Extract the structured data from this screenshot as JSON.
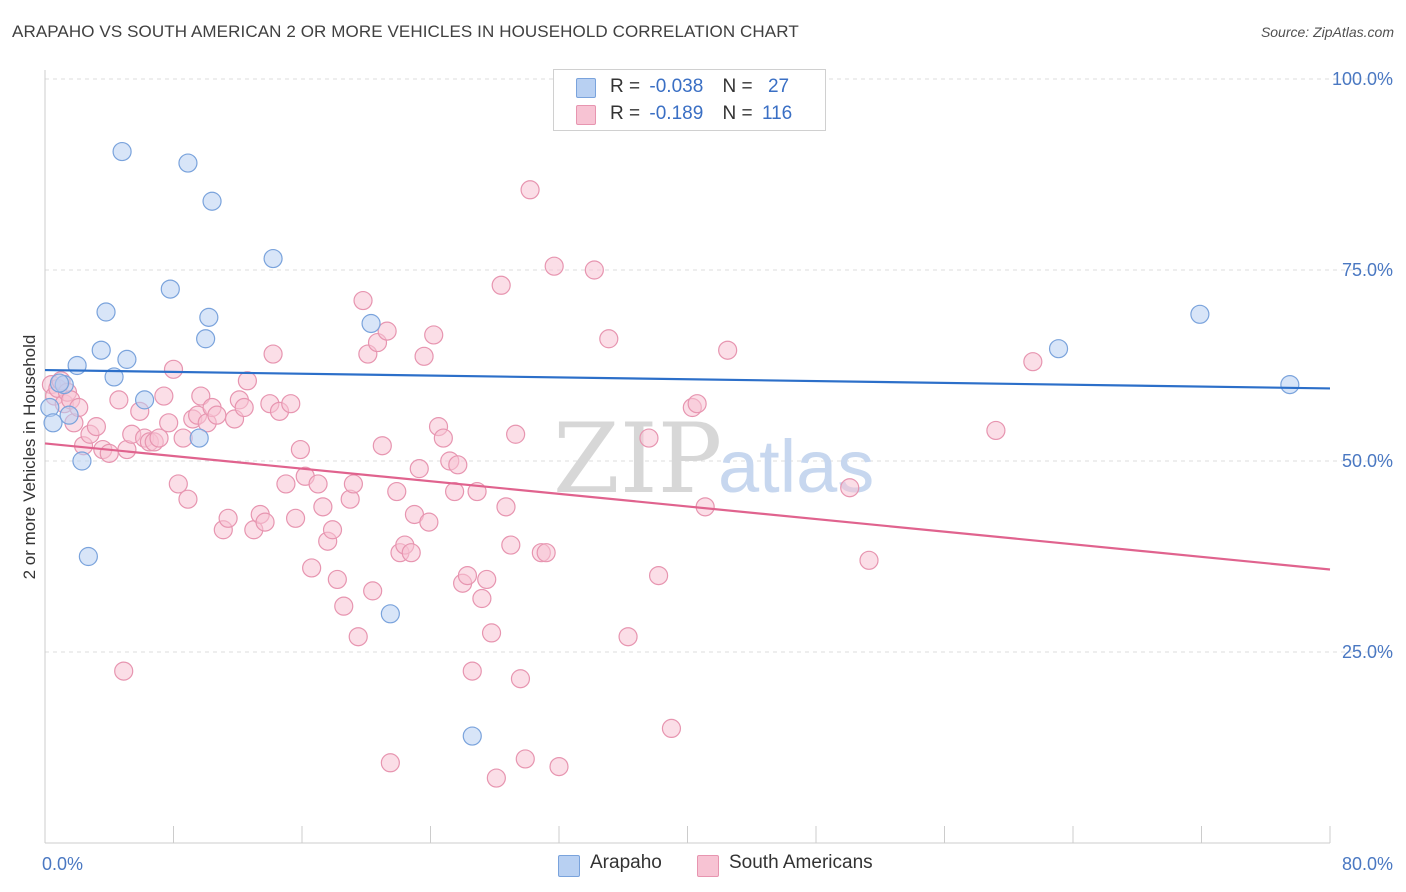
{
  "title": "ARAPAHO VS SOUTH AMERICAN 2 OR MORE VEHICLES IN HOUSEHOLD CORRELATION CHART",
  "source": "Source: ZipAtlas.com",
  "watermark": {
    "zip": "ZIP",
    "atlas": "atlas"
  },
  "colors": {
    "arapaho_fill": "#b8d0f2",
    "arapaho_stroke": "#7aa3dc",
    "arapaho_line": "#2c6fc9",
    "south_fill": "#f7c3d3",
    "south_stroke": "#e795b0",
    "south_line": "#e0638e",
    "grid": "#dddddd",
    "tick_text": "#4a78c2"
  },
  "legend": {
    "rows": [
      {
        "r_label": "R =",
        "r_value": "-0.038",
        "n_label": "N =",
        "n_value": "27"
      },
      {
        "r_label": "R =",
        "r_value": "-0.189",
        "n_label": "N =",
        "n_value": "116"
      }
    ]
  },
  "bottom_legend": {
    "arapaho": "Arapaho",
    "south": "South Americans"
  },
  "chart_data": {
    "type": "scatter",
    "xlabel": "",
    "ylabel": "2 or more Vehicles in Household",
    "xlim": [
      0,
      80
    ],
    "ylim": [
      0,
      105
    ],
    "x_tick_labels": [
      "0.0%",
      "80.0%"
    ],
    "y_ticks": [
      25,
      50,
      75,
      100
    ],
    "y_tick_labels": [
      "25.0%",
      "50.0%",
      "75.0%",
      "100.0%"
    ],
    "grid": true,
    "legend_position": "top-center",
    "series": [
      {
        "name": "Arapaho",
        "trend": {
          "x": [
            0,
            80
          ],
          "y": [
            61.9,
            59.5
          ]
        },
        "points": [
          {
            "x": 0.3,
            "y": 57.0
          },
          {
            "x": 0.5,
            "y": 55.0
          },
          {
            "x": 1.2,
            "y": 60.0
          },
          {
            "x": 1.5,
            "y": 56.0
          },
          {
            "x": 2.0,
            "y": 62.5
          },
          {
            "x": 2.3,
            "y": 50.0
          },
          {
            "x": 2.7,
            "y": 37.5
          },
          {
            "x": 3.5,
            "y": 64.5
          },
          {
            "x": 3.8,
            "y": 69.5
          },
          {
            "x": 4.3,
            "y": 61.0
          },
          {
            "x": 4.8,
            "y": 90.5
          },
          {
            "x": 5.1,
            "y": 63.3
          },
          {
            "x": 6.2,
            "y": 58.0
          },
          {
            "x": 7.8,
            "y": 72.5
          },
          {
            "x": 8.9,
            "y": 89.0
          },
          {
            "x": 9.6,
            "y": 53.0
          },
          {
            "x": 10.0,
            "y": 66.0
          },
          {
            "x": 10.2,
            "y": 68.8
          },
          {
            "x": 10.4,
            "y": 84.0
          },
          {
            "x": 14.2,
            "y": 76.5
          },
          {
            "x": 20.3,
            "y": 68.0
          },
          {
            "x": 21.5,
            "y": 30.0
          },
          {
            "x": 26.6,
            "y": 14.0
          },
          {
            "x": 63.1,
            "y": 64.7
          },
          {
            "x": 71.9,
            "y": 69.2
          },
          {
            "x": 77.5,
            "y": 60.0
          },
          {
            "x": 0.9,
            "y": 60.2
          }
        ]
      },
      {
        "name": "South Americans",
        "trend": {
          "x": [
            0,
            80
          ],
          "y": [
            52.3,
            35.8
          ]
        },
        "points": [
          {
            "x": 0.4,
            "y": 60.0
          },
          {
            "x": 0.6,
            "y": 58.5
          },
          {
            "x": 0.8,
            "y": 59.5
          },
          {
            "x": 1.0,
            "y": 60.5
          },
          {
            "x": 1.2,
            "y": 57.5
          },
          {
            "x": 1.4,
            "y": 59.0
          },
          {
            "x": 1.6,
            "y": 58.0
          },
          {
            "x": 1.8,
            "y": 55.0
          },
          {
            "x": 2.1,
            "y": 57.0
          },
          {
            "x": 2.4,
            "y": 52.0
          },
          {
            "x": 2.8,
            "y": 53.5
          },
          {
            "x": 3.2,
            "y": 54.5
          },
          {
            "x": 3.6,
            "y": 51.5
          },
          {
            "x": 4.0,
            "y": 51.0
          },
          {
            "x": 4.6,
            "y": 58.0
          },
          {
            "x": 4.9,
            "y": 22.5
          },
          {
            "x": 5.1,
            "y": 51.5
          },
          {
            "x": 5.4,
            "y": 53.5
          },
          {
            "x": 5.9,
            "y": 56.5
          },
          {
            "x": 6.2,
            "y": 53.0
          },
          {
            "x": 6.5,
            "y": 52.5
          },
          {
            "x": 6.8,
            "y": 52.5
          },
          {
            "x": 7.1,
            "y": 53.0
          },
          {
            "x": 7.4,
            "y": 58.5
          },
          {
            "x": 7.7,
            "y": 55.0
          },
          {
            "x": 8.0,
            "y": 62.0
          },
          {
            "x": 8.3,
            "y": 47.0
          },
          {
            "x": 8.6,
            "y": 53.0
          },
          {
            "x": 8.9,
            "y": 45.0
          },
          {
            "x": 9.2,
            "y": 55.5
          },
          {
            "x": 9.5,
            "y": 56.0
          },
          {
            "x": 9.7,
            "y": 58.5
          },
          {
            "x": 10.1,
            "y": 55.0
          },
          {
            "x": 10.4,
            "y": 57.0
          },
          {
            "x": 10.7,
            "y": 56.0
          },
          {
            "x": 11.1,
            "y": 41.0
          },
          {
            "x": 11.4,
            "y": 42.5
          },
          {
            "x": 11.8,
            "y": 55.5
          },
          {
            "x": 12.1,
            "y": 58.0
          },
          {
            "x": 12.4,
            "y": 57.0
          },
          {
            "x": 12.6,
            "y": 60.5
          },
          {
            "x": 13.0,
            "y": 41.0
          },
          {
            "x": 13.4,
            "y": 43.0
          },
          {
            "x": 13.7,
            "y": 42.0
          },
          {
            "x": 14.0,
            "y": 57.5
          },
          {
            "x": 14.2,
            "y": 64.0
          },
          {
            "x": 14.6,
            "y": 56.5
          },
          {
            "x": 15.0,
            "y": 47.0
          },
          {
            "x": 15.3,
            "y": 57.5
          },
          {
            "x": 15.6,
            "y": 42.5
          },
          {
            "x": 15.9,
            "y": 51.5
          },
          {
            "x": 16.2,
            "y": 48.0
          },
          {
            "x": 16.6,
            "y": 36.0
          },
          {
            "x": 17.0,
            "y": 47.0
          },
          {
            "x": 17.3,
            "y": 44.0
          },
          {
            "x": 17.6,
            "y": 39.5
          },
          {
            "x": 17.9,
            "y": 41.0
          },
          {
            "x": 18.2,
            "y": 34.5
          },
          {
            "x": 18.6,
            "y": 31.0
          },
          {
            "x": 19.0,
            "y": 45.0
          },
          {
            "x": 19.2,
            "y": 47.0
          },
          {
            "x": 19.5,
            "y": 27.0
          },
          {
            "x": 19.8,
            "y": 71.0
          },
          {
            "x": 20.1,
            "y": 64.0
          },
          {
            "x": 20.4,
            "y": 33.0
          },
          {
            "x": 20.7,
            "y": 65.5
          },
          {
            "x": 21.0,
            "y": 52.0
          },
          {
            "x": 21.3,
            "y": 67.0
          },
          {
            "x": 21.5,
            "y": 10.5
          },
          {
            "x": 21.9,
            "y": 46.0
          },
          {
            "x": 22.1,
            "y": 38.0
          },
          {
            "x": 22.4,
            "y": 39.0
          },
          {
            "x": 22.8,
            "y": 38.0
          },
          {
            "x": 23.0,
            "y": 43.0
          },
          {
            "x": 23.3,
            "y": 49.0
          },
          {
            "x": 23.6,
            "y": 63.7
          },
          {
            "x": 23.9,
            "y": 42.0
          },
          {
            "x": 24.2,
            "y": 66.5
          },
          {
            "x": 24.5,
            "y": 54.5
          },
          {
            "x": 24.8,
            "y": 53.0
          },
          {
            "x": 25.2,
            "y": 50.0
          },
          {
            "x": 25.5,
            "y": 46.0
          },
          {
            "x": 25.7,
            "y": 49.5
          },
          {
            "x": 26.0,
            "y": 34.0
          },
          {
            "x": 26.3,
            "y": 35.0
          },
          {
            "x": 26.6,
            "y": 22.5
          },
          {
            "x": 26.9,
            "y": 46.0
          },
          {
            "x": 27.2,
            "y": 32.0
          },
          {
            "x": 27.5,
            "y": 34.5
          },
          {
            "x": 27.8,
            "y": 27.5
          },
          {
            "x": 28.1,
            "y": 8.5
          },
          {
            "x": 28.4,
            "y": 73.0
          },
          {
            "x": 28.7,
            "y": 44.0
          },
          {
            "x": 29.0,
            "y": 39.0
          },
          {
            "x": 29.3,
            "y": 53.5
          },
          {
            "x": 29.6,
            "y": 21.5
          },
          {
            "x": 29.9,
            "y": 11.0
          },
          {
            "x": 30.2,
            "y": 85.5
          },
          {
            "x": 30.9,
            "y": 38.0
          },
          {
            "x": 31.2,
            "y": 38.0
          },
          {
            "x": 31.7,
            "y": 75.5
          },
          {
            "x": 32.0,
            "y": 10.0
          },
          {
            "x": 34.2,
            "y": 75.0
          },
          {
            "x": 35.1,
            "y": 66.0
          },
          {
            "x": 36.3,
            "y": 27.0
          },
          {
            "x": 37.6,
            "y": 53.0
          },
          {
            "x": 38.2,
            "y": 35.0
          },
          {
            "x": 39.0,
            "y": 15.0
          },
          {
            "x": 40.3,
            "y": 57.0
          },
          {
            "x": 40.6,
            "y": 57.5
          },
          {
            "x": 41.1,
            "y": 44.0
          },
          {
            "x": 42.5,
            "y": 64.5
          },
          {
            "x": 50.1,
            "y": 46.5
          },
          {
            "x": 51.3,
            "y": 37.0
          },
          {
            "x": 59.2,
            "y": 54.0
          },
          {
            "x": 61.5,
            "y": 63.0
          }
        ]
      }
    ]
  }
}
